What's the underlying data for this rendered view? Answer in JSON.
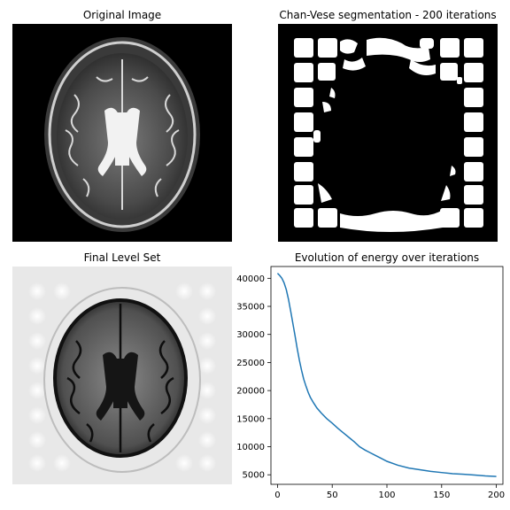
{
  "panels": {
    "original_title": "Original Image",
    "segmentation_title": "Chan-Vese segmentation - 200 iterations",
    "levelset_title": "Final Level Set",
    "energy_title": "Evolution of energy over iterations"
  },
  "colors": {
    "line": "#1f77b4",
    "background_dark": "#000000",
    "levelset_bg": "#e8e8e8"
  },
  "chart_data": {
    "type": "line",
    "title": "Evolution of energy over iterations",
    "xlabel": "",
    "ylabel": "",
    "xlim": [
      -6,
      206
    ],
    "ylim": [
      3300,
      42100
    ],
    "xticks": [
      0,
      50,
      100,
      150,
      200
    ],
    "yticks": [
      5000,
      10000,
      15000,
      20000,
      25000,
      30000,
      35000,
      40000
    ],
    "grid": false,
    "series": [
      {
        "x": [
          0,
          2,
          4,
          6,
          8,
          10,
          12,
          14,
          16,
          18,
          20,
          22,
          24,
          26,
          28,
          30,
          33,
          36,
          40,
          45,
          50,
          55,
          60,
          65,
          70,
          75,
          80,
          85,
          90,
          95,
          100,
          110,
          120,
          130,
          140,
          150,
          160,
          170,
          180,
          190,
          200
        ],
        "values": [
          40900,
          40500,
          40000,
          39200,
          38000,
          36300,
          34200,
          32000,
          29800,
          27500,
          25400,
          23600,
          22000,
          20800,
          19700,
          18800,
          17800,
          16900,
          16000,
          15000,
          14200,
          13300,
          12500,
          11700,
          10900,
          10000,
          9400,
          8900,
          8400,
          7900,
          7400,
          6700,
          6200,
          5900,
          5600,
          5400,
          5200,
          5100,
          4950,
          4800,
          4700
        ]
      }
    ]
  }
}
